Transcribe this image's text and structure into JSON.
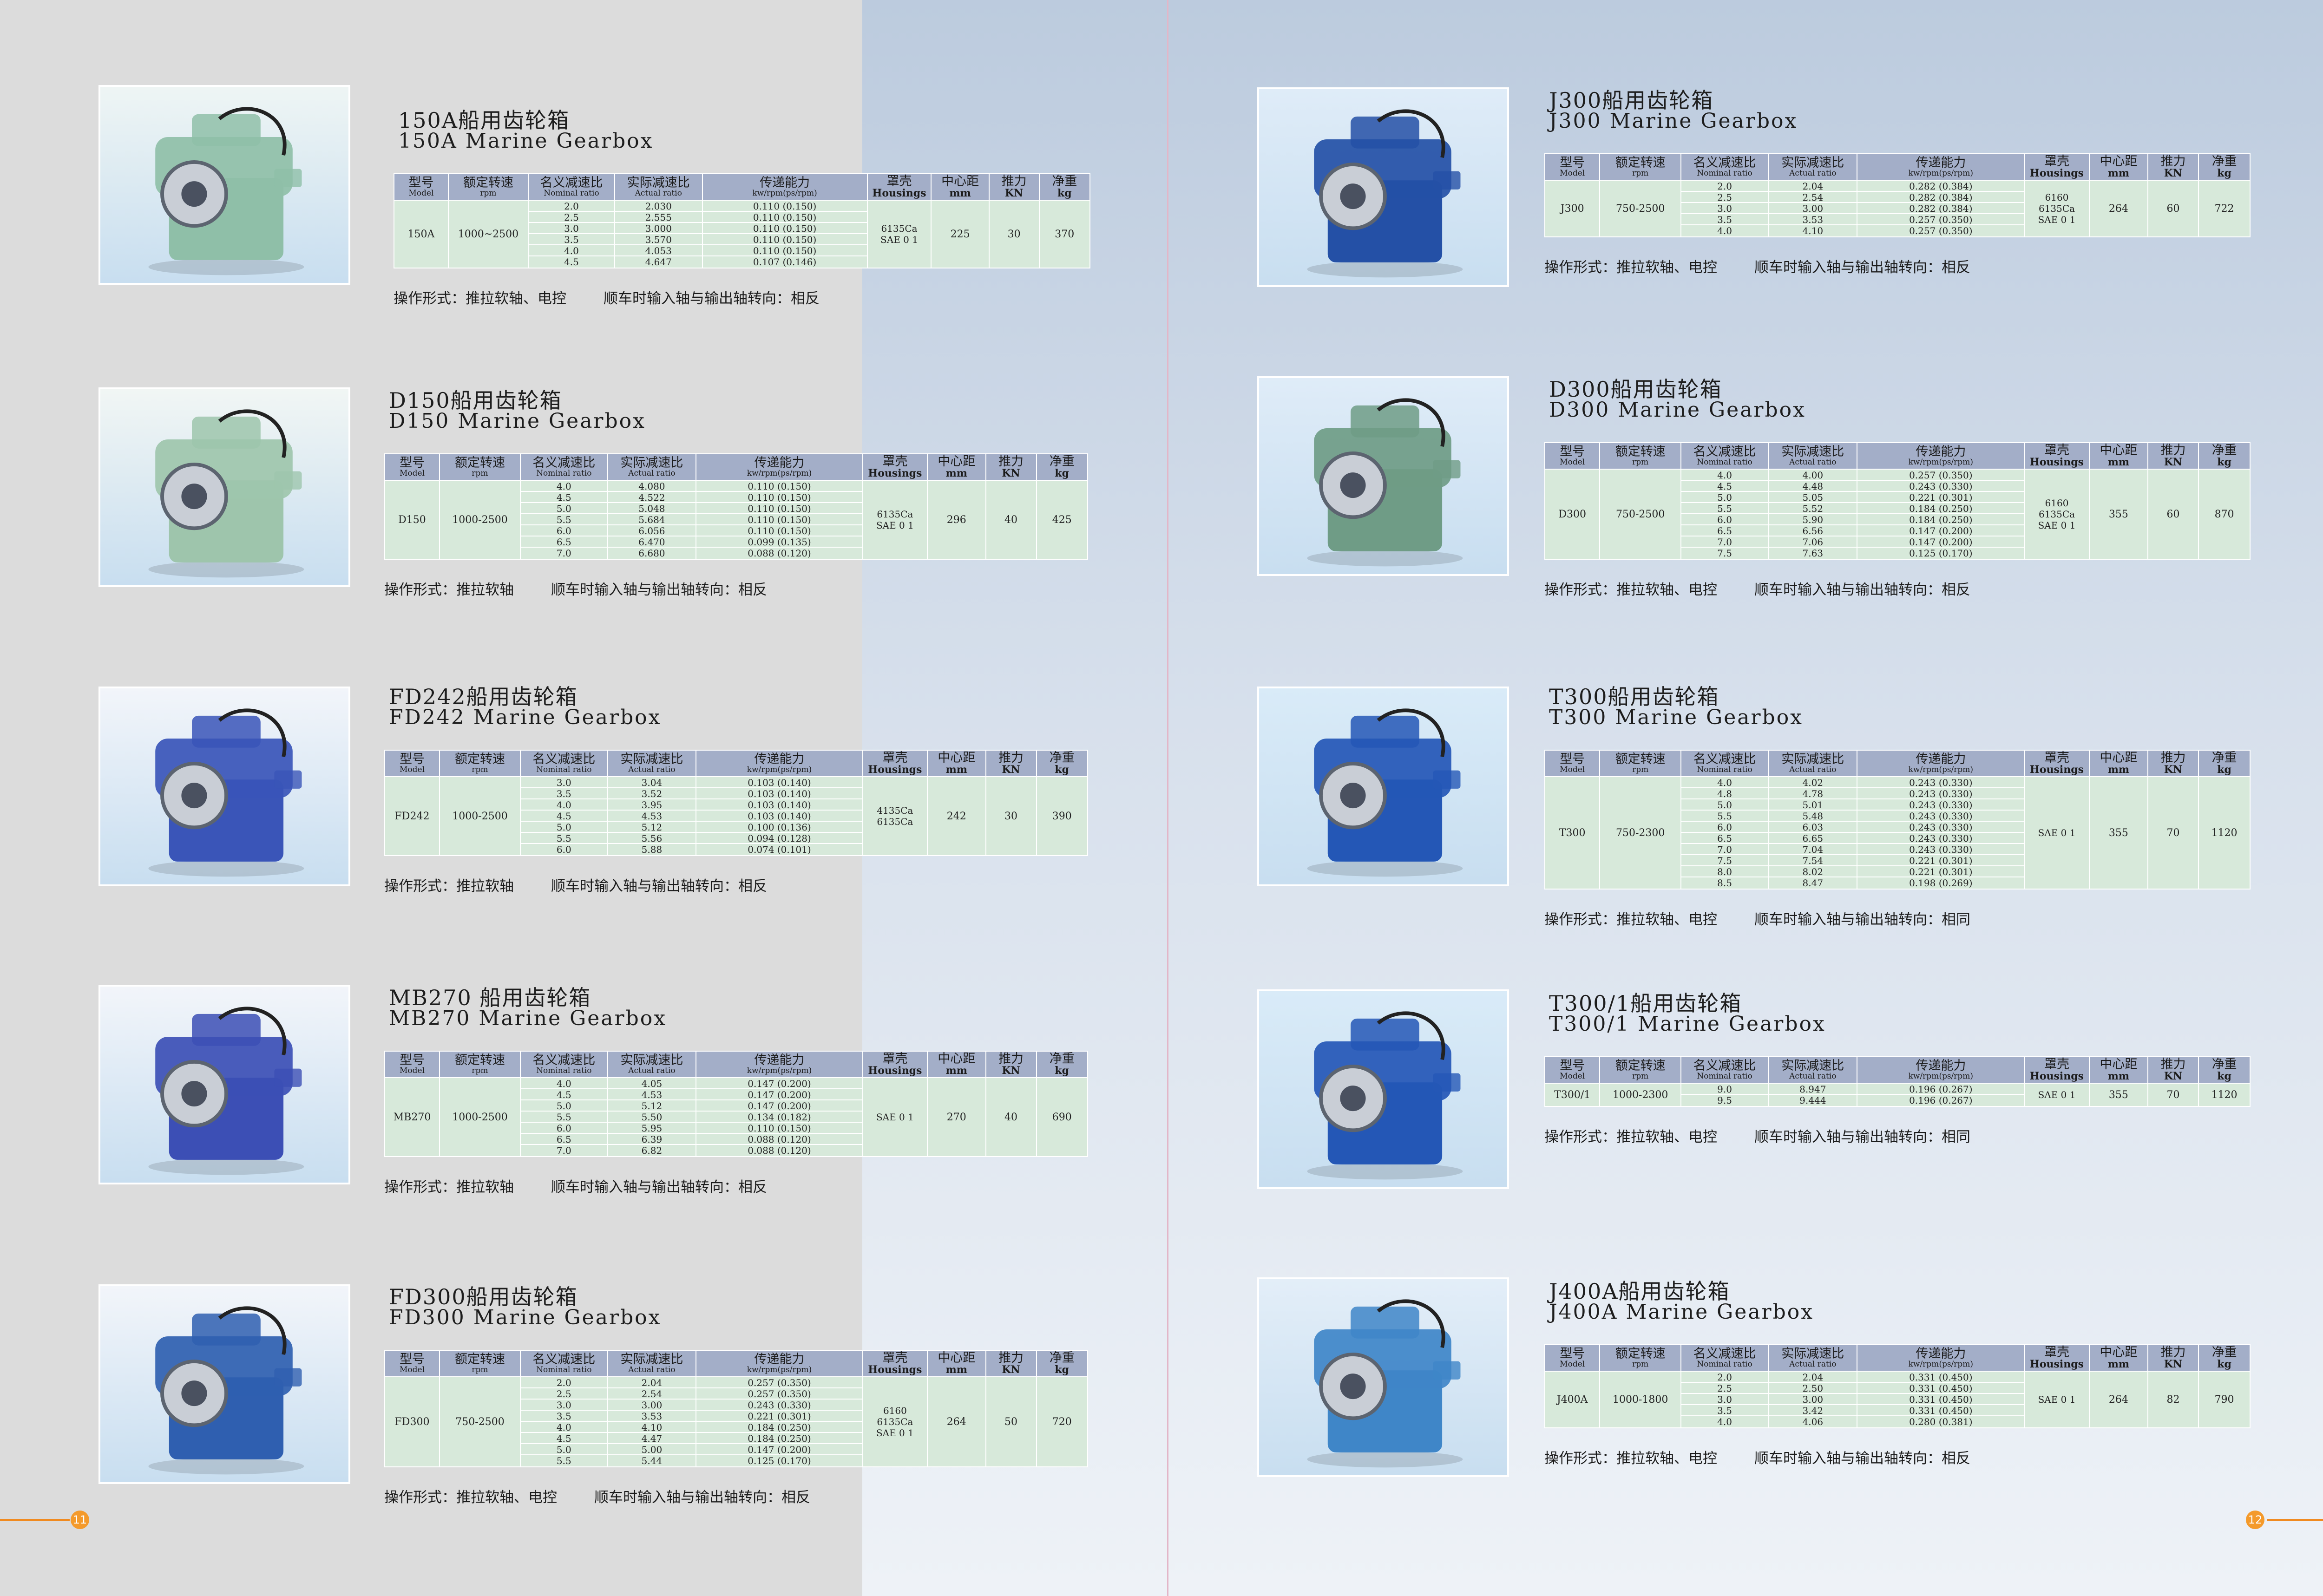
{
  "headers": {
    "model_cn": "型号",
    "model_en": "Model",
    "rpm_cn": "额定转速",
    "rpm_en": "rpm",
    "nominal_cn": "名义减速比",
    "nominal_en": "Nominal ratio",
    "actual_cn": "实际减速比",
    "actual_en": "Actual ratio",
    "power_cn": "传递能力",
    "power_en": "kw/rpm(ps/rpm)",
    "housing_cn": "罩壳",
    "housing_en": "Housings",
    "center_cn": "中心距",
    "center_en": "mm",
    "thrust_cn": "推力",
    "thrust_en": "KN",
    "weight_cn": "净重",
    "weight_en": "kg"
  },
  "pages": {
    "left": "11",
    "right": "12"
  },
  "gearboxes": [
    {
      "title_cn": "150A船用齿轮箱",
      "title_en": "150A Marine  Gearbox",
      "model": "150A",
      "rpm": "1000~2500",
      "nominal": [
        "2.0",
        "2.5",
        "3.0",
        "3.5",
        "4.0",
        "4.5"
      ],
      "actual": [
        "2.030",
        "2.555",
        "3.000",
        "3.570",
        "4.053",
        "4.647"
      ],
      "power": [
        "0.110 (0.150)",
        "0.110 (0.150)",
        "0.110 (0.150)",
        "0.110 (0.150)",
        "0.110 (0.150)",
        "0.107 (0.146)"
      ],
      "housing": "6135Ca\nSAE 0 1",
      "center": "225",
      "thrust": "30",
      "weight": "370",
      "op": "操作形式：推拉软轴、电控",
      "rot": "顺车时输入轴与输出轴转向：相反",
      "color": "#8fbfa8",
      "bg": "#eef5f4"
    },
    {
      "title_cn": "D150船用齿轮箱",
      "title_en": "D150  Marine  Gearbox",
      "model": "D150",
      "rpm": "1000-2500",
      "nominal": [
        "4.0",
        "4.5",
        "5.0",
        "5.5",
        "6.0",
        "6.5",
        "7.0"
      ],
      "actual": [
        "4.080",
        "4.522",
        "5.048",
        "5.684",
        "6.056",
        "6.470",
        "6.680"
      ],
      "power": [
        "0.110 (0.150)",
        "0.110 (0.150)",
        "0.110 (0.150)",
        "0.110 (0.150)",
        "0.110 (0.150)",
        "0.099 (0.135)",
        "0.088 (0.120)"
      ],
      "housing": "6135Ca\nSAE 0 1",
      "center": "296",
      "thrust": "40",
      "weight": "425",
      "op": "操作形式：推拉软轴",
      "rot": "顺车时输入轴与输出轴转向：相反",
      "color": "#9ec5ac",
      "bg": "#f1f6f4"
    },
    {
      "title_cn": "FD242船用齿轮箱",
      "title_en": "FD242 Marine  Gearbox",
      "model": "FD242",
      "rpm": "1000-2500",
      "nominal": [
        "3.0",
        "3.5",
        "4.0",
        "4.5",
        "5.0",
        "5.5",
        "6.0"
      ],
      "actual": [
        "3.04",
        "3.52",
        "3.95",
        "4.53",
        "5.12",
        "5.56",
        "5.88"
      ],
      "power": [
        "0.103 (0.140)",
        "0.103 (0.140)",
        "0.103 (0.140)",
        "0.103 (0.140)",
        "0.100 (0.136)",
        "0.094 (0.128)",
        "0.074 (0.101)"
      ],
      "housing": "4135Ca\n6135Ca",
      "center": "242",
      "thrust": "30",
      "weight": "390",
      "op": "操作形式：推拉软轴",
      "rot": "顺车时输入轴与输出轴转向：相反",
      "color": "#3a55b8",
      "bg": "#f2f5fa"
    },
    {
      "title_cn": "MB270 船用齿轮箱",
      "title_en": "MB270 Marine  Gearbox",
      "model": "MB270",
      "rpm": "1000-2500",
      "nominal": [
        "4.0",
        "4.5",
        "5.0",
        "5.5",
        "6.0",
        "6.5",
        "7.0"
      ],
      "actual": [
        "4.05",
        "4.53",
        "5.12",
        "5.50",
        "5.95",
        "6.39",
        "6.82"
      ],
      "power": [
        "0.147 (0.200)",
        "0.147 (0.200)",
        "0.147 (0.200)",
        "0.134 (0.182)",
        "0.110 (0.150)",
        "0.088 (0.120)",
        "0.088 (0.120)"
      ],
      "housing": "SAE 0 1",
      "center": "270",
      "thrust": "40",
      "weight": "690",
      "op": "操作形式：推拉软轴",
      "rot": "顺车时输入轴与输出轴转向：相反",
      "color": "#3c4fb5",
      "bg": "#f2f5fa"
    },
    {
      "title_cn": "FD300船用齿轮箱",
      "title_en": "FD300 Marine  Gearbox",
      "model": "FD300",
      "rpm": "750-2500",
      "nominal": [
        "2.0",
        "2.5",
        "3.0",
        "3.5",
        "4.0",
        "4.5",
        "5.0",
        "5.5"
      ],
      "actual": [
        "2.04",
        "2.54",
        "3.00",
        "3.53",
        "4.10",
        "4.47",
        "5.00",
        "5.44"
      ],
      "power": [
        "0.257 (0.350)",
        "0.257 (0.350)",
        "0.243 (0.330)",
        "0.221 (0.301)",
        "0.184 (0.250)",
        "0.184 (0.250)",
        "0.147 (0.200)",
        "0.125 (0.170)"
      ],
      "housing": "6160\n6135Ca\nSAE 0 1",
      "center": "264",
      "thrust": "50",
      "weight": "720",
      "op": "操作形式：推拉软轴、电控",
      "rot": "顺车时输入轴与输出轴转向：相反",
      "color": "#2f5fb0",
      "bg": "#f2f5fa"
    },
    {
      "title_cn": "J300船用齿轮箱",
      "title_en": "J300 Marine  Gearbox",
      "model": "J300",
      "rpm": "750-2500",
      "nominal": [
        "2.0",
        "2.5",
        "3.0",
        "3.5",
        "4.0"
      ],
      "actual": [
        "2.04",
        "2.54",
        "3.00",
        "3.53",
        "4.10"
      ],
      "power": [
        "0.282 (0.384)",
        "0.282 (0.384)",
        "0.282 (0.384)",
        "0.257 (0.350)",
        "0.257 (0.350)"
      ],
      "housing": "6160\n6135Ca\nSAE 0 1",
      "center": "264",
      "thrust": "60",
      "weight": "722",
      "op": "操作形式：推拉软轴、电控",
      "rot": "顺车时输入轴与输出轴转向：相反",
      "color": "#2450a6",
      "bg": "#dfecf8"
    },
    {
      "title_cn": "D300船用齿轮箱",
      "title_en": "D300 Marine  Gearbox",
      "model": "D300",
      "rpm": "750-2500",
      "nominal": [
        "4.0",
        "4.5",
        "5.0",
        "5.5",
        "6.0",
        "6.5",
        "7.0",
        "7.5"
      ],
      "actual": [
        "4.00",
        "4.48",
        "5.05",
        "5.52",
        "5.90",
        "6.56",
        "7.06",
        "7.63"
      ],
      "power": [
        "0.257 (0.350)",
        "0.243 (0.330)",
        "0.221 (0.301)",
        "0.184 (0.250)",
        "0.184 (0.250)",
        "0.147 (0.200)",
        "0.147 (0.200)",
        "0.125 (0.170)"
      ],
      "housing": "6160\n6135Ca\nSAE 0 1",
      "center": "355",
      "thrust": "60",
      "weight": "870",
      "op": "操作形式：推拉软轴、电控",
      "rot": "顺车时输入轴与输出轴转向：相反",
      "color": "#6f9c86",
      "bg": "#dfecf8"
    },
    {
      "title_cn": "T300船用齿轮箱",
      "title_en": "T300 Marine  Gearbox",
      "model": "T300",
      "rpm": "750-2300",
      "nominal": [
        "4.0",
        "4.8",
        "5.0",
        "5.5",
        "6.0",
        "6.5",
        "7.0",
        "7.5",
        "8.0",
        "8.5"
      ],
      "actual": [
        "4.02",
        "4.78",
        "5.01",
        "5.48",
        "6.03",
        "6.65",
        "7.04",
        "7.54",
        "8.02",
        "8.47"
      ],
      "power": [
        "0.243 (0.330)",
        "0.243 (0.330)",
        "0.243 (0.330)",
        "0.243 (0.330)",
        "0.243 (0.330)",
        "0.243 (0.330)",
        "0.243 (0.330)",
        "0.221 (0.301)",
        "0.221 (0.301)",
        "0.198 (0.269)"
      ],
      "housing": "SAE 0 1",
      "center": "355",
      "thrust": "70",
      "weight": "1120",
      "op": "操作形式：推拉软轴、电控",
      "rot": "顺车时输入轴与输出轴转向：相同",
      "color": "#2457b6",
      "bg": "#d9ebf8"
    },
    {
      "title_cn": "T300/1船用齿轮箱",
      "title_en": "T300/1 Marine  Gearbox",
      "model": "T300/1",
      "rpm": "1000-2300",
      "nominal": [
        "9.0",
        "9.5"
      ],
      "actual": [
        "8.947",
        "9.444"
      ],
      "power": [
        "0.196 (0.267)",
        "0.196 (0.267)"
      ],
      "housing": "SAE 0 1",
      "center": "355",
      "thrust": "70",
      "weight": "1120",
      "op": "操作形式：推拉软轴、电控",
      "rot": "顺车时输入轴与输出轴转向：相同",
      "color": "#2457b6",
      "bg": "#d9ebf8"
    },
    {
      "title_cn": "J400A船用齿轮箱",
      "title_en": "J400A Marine  Gearbox",
      "model": "J400A",
      "rpm": "1000-1800",
      "nominal": [
        "2.0",
        "2.5",
        "3.0",
        "3.5",
        "4.0"
      ],
      "actual": [
        "2.04",
        "2.50",
        "3.00",
        "3.42",
        "4.06"
      ],
      "power": [
        "0.331 (0.450)",
        "0.331 (0.450)",
        "0.331 (0.450)",
        "0.331 (0.450)",
        "0.280 (0.381)"
      ],
      "housing": "SAE 0 1",
      "center": "264",
      "thrust": "82",
      "weight": "790",
      "op": "操作形式：推拉软轴、电控",
      "rot": "顺车时输入轴与输出轴转向：相反",
      "color": "#3f86c8",
      "bg": "#e3eef8"
    }
  ]
}
